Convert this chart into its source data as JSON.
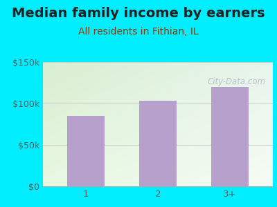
{
  "title": "Median family income by earners",
  "subtitle": "All residents in Fithian, IL",
  "categories": [
    "1",
    "2",
    "3+"
  ],
  "values": [
    85000,
    103000,
    120000
  ],
  "bar_color": "#b8a0cc",
  "background_outer": "#00eeff",
  "title_color": "#222222",
  "subtitle_color": "#8b3a00",
  "tick_color": "#5a5a5a",
  "axis_label_color": "#5a5a5a",
  "ylim": [
    0,
    150000
  ],
  "yticks": [
    0,
    50000,
    100000,
    150000
  ],
  "ytick_labels": [
    "$0",
    "$50k",
    "$100k",
    "$150k"
  ],
  "watermark": "City-Data.com",
  "title_fontsize": 14,
  "subtitle_fontsize": 10
}
